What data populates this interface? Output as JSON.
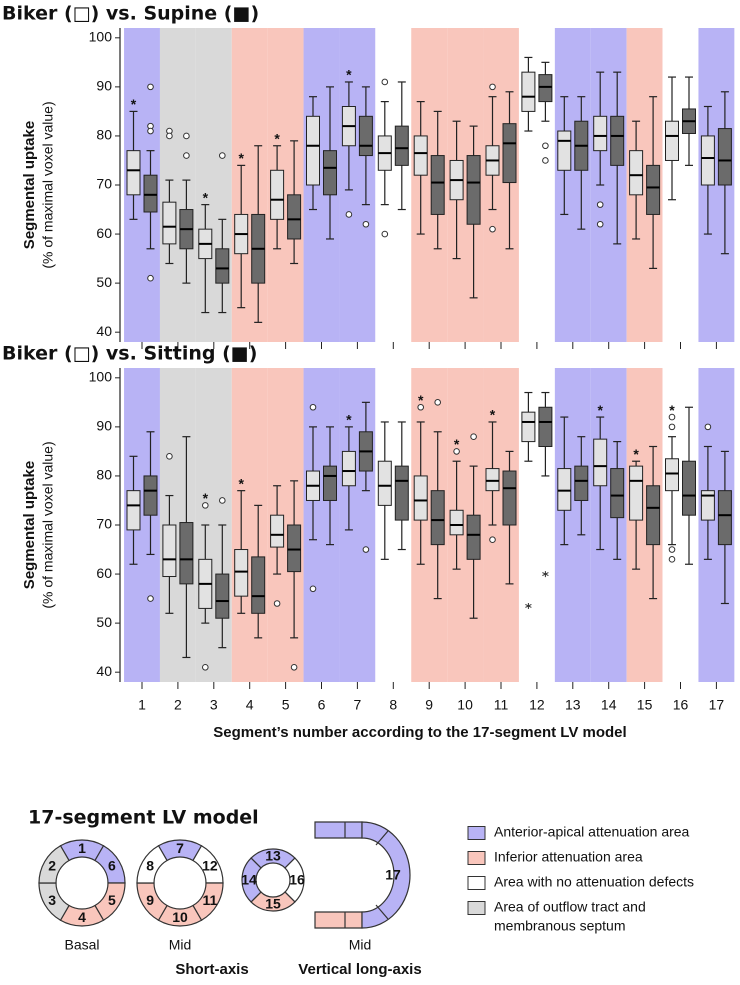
{
  "chart_data": [
    {
      "type": "box",
      "title": "Biker (□) vs. Supine (■)",
      "ylabel": "Segmental uptake",
      "ylabel_sub": "(% of maximal voxel value)",
      "categories": [
        null,
        null,
        null,
        null,
        null,
        null,
        null,
        null,
        null,
        null,
        null,
        null,
        null,
        null,
        null,
        null,
        null
      ],
      "region_colors": [
        "#b8b3f5",
        "#d9d9d9",
        "#d9d9d9",
        "#f9c6bc",
        "#f9c6bc",
        "#b8b3f5",
        "#b8b3f5",
        "#ffffff",
        "#f9c6bc",
        "#f9c6bc",
        "#f9c6bc",
        "#ffffff",
        "#b8b3f5",
        "#b8b3f5",
        "#f9c6bc",
        "#ffffff",
        "#b8b3f5"
      ],
      "ylim": [
        38,
        102
      ],
      "yticks": [
        40,
        50,
        60,
        70,
        80,
        90,
        100
      ],
      "significance_label": "*",
      "significance_color": "#e02020",
      "significant": [
        true,
        false,
        true,
        true,
        true,
        false,
        true,
        false,
        false,
        false,
        false,
        false,
        false,
        false,
        false,
        false,
        false
      ],
      "series": [
        {
          "color": "#e2e2e2",
          "whisker_low": [
            63,
            54,
            44,
            45,
            57,
            65,
            69,
            66,
            60,
            55,
            65,
            81,
            64,
            70,
            59,
            67,
            60
          ],
          "q1": [
            68,
            58,
            55,
            56,
            63,
            70,
            78,
            73,
            72,
            67,
            72,
            85,
            73,
            77,
            68,
            75,
            70
          ],
          "median": [
            73,
            61.5,
            58,
            60,
            67,
            78,
            82,
            76.5,
            76.5,
            71,
            75,
            88,
            79,
            80,
            72,
            80,
            75.5
          ],
          "q3": [
            77,
            66.5,
            61,
            64,
            73,
            84,
            86,
            80,
            80,
            75,
            78,
            93,
            81,
            84,
            77,
            83,
            80
          ],
          "whisker_high": [
            85,
            71,
            66,
            74,
            78,
            88,
            91,
            87,
            87,
            83,
            88,
            96,
            88,
            93,
            83,
            92,
            86
          ],
          "outliers": [
            [],
            [
              81,
              80
            ],
            [],
            [],
            [],
            [],
            [
              64
            ],
            [
              91,
              60
            ],
            [],
            [],
            [
              90,
              61
            ],
            [],
            [],
            [
              66,
              62
            ],
            [],
            [],
            []
          ],
          "extremes": [
            [],
            [],
            [],
            [],
            [],
            [],
            [],
            [],
            [],
            [],
            [],
            [],
            [],
            [],
            [],
            [],
            []
          ]
        },
        {
          "color": "#6b6b6b",
          "whisker_low": [
            57,
            50,
            44,
            42,
            54,
            59,
            66,
            65,
            57,
            47,
            57,
            83,
            61,
            58,
            53,
            74,
            56
          ],
          "q1": [
            64.5,
            57,
            50,
            50,
            59,
            68,
            76,
            74,
            64,
            62,
            70.5,
            87,
            73,
            74,
            64,
            80.5,
            70
          ],
          "median": [
            68,
            61,
            53,
            57,
            63,
            73.5,
            78,
            77.5,
            70.5,
            70.5,
            78.5,
            90,
            78,
            80,
            69.5,
            83,
            75
          ],
          "q3": [
            72,
            65,
            57,
            64,
            68,
            77,
            84,
            82,
            76,
            76,
            82.5,
            92.5,
            83,
            84,
            74,
            85.5,
            81.5
          ],
          "whisker_high": [
            77,
            71,
            63,
            78,
            79,
            90,
            90,
            91,
            85,
            82,
            89,
            95,
            88,
            93,
            88,
            92,
            89
          ],
          "outliers": [
            [
              90,
              82,
              81,
              51
            ],
            [
              80,
              76
            ],
            [
              76
            ],
            [],
            [],
            [],
            [
              62
            ],
            [],
            [],
            [],
            [],
            [
              78,
              75
            ],
            [],
            [],
            [],
            [],
            []
          ],
          "extremes": [
            [],
            [],
            [],
            [],
            [],
            [],
            [],
            [],
            [],
            [],
            [],
            [],
            [],
            [],
            [],
            [],
            []
          ]
        }
      ]
    },
    {
      "type": "box",
      "title": "Biker (□) vs. Sitting (■)",
      "ylabel": "Segmental uptake",
      "ylabel_sub": "(% of maximal voxel value)",
      "xlabel": "Segment’s number according to the 17-segment LV model",
      "categories": [
        "1",
        "2",
        "3",
        "4",
        "5",
        "6",
        "7",
        "8",
        "9",
        "10",
        "11",
        "12",
        "13",
        "14",
        "15",
        "16",
        "17"
      ],
      "region_colors": [
        "#b8b3f5",
        "#d9d9d9",
        "#d9d9d9",
        "#f9c6bc",
        "#f9c6bc",
        "#b8b3f5",
        "#b8b3f5",
        "#ffffff",
        "#f9c6bc",
        "#f9c6bc",
        "#f9c6bc",
        "#ffffff",
        "#b8b3f5",
        "#b8b3f5",
        "#f9c6bc",
        "#ffffff",
        "#b8b3f5"
      ],
      "ylim": [
        38,
        102
      ],
      "yticks": [
        40,
        50,
        60,
        70,
        80,
        90,
        100
      ],
      "significance_label": "*",
      "significance_color": "#e02020",
      "significant": [
        false,
        false,
        true,
        true,
        false,
        false,
        true,
        false,
        true,
        true,
        true,
        false,
        false,
        true,
        true,
        true,
        false
      ],
      "series": [
        {
          "color": "#e2e2e2",
          "whisker_low": [
            62,
            52,
            50,
            52,
            60,
            67,
            69,
            63,
            62,
            61,
            70,
            83,
            66,
            65,
            61,
            66,
            63
          ],
          "q1": [
            69,
            59.5,
            53,
            55.5,
            65.5,
            75,
            78,
            74,
            71,
            68,
            77,
            87,
            73,
            78,
            71,
            77,
            71
          ],
          "median": [
            74,
            63,
            58,
            60.5,
            68,
            78,
            81,
            78,
            75,
            70,
            79,
            91,
            77,
            82,
            79,
            80.5,
            76
          ],
          "q3": [
            77,
            70,
            63,
            65,
            72,
            81,
            85,
            83,
            80,
            73,
            81.5,
            93,
            81.5,
            87.5,
            82,
            83.5,
            77
          ],
          "whisker_high": [
            84,
            76,
            70,
            77,
            78,
            90,
            90,
            91,
            91,
            83,
            91,
            97,
            92,
            92,
            83,
            88,
            86
          ],
          "outliers": [
            [],
            [
              84
            ],
            [
              74,
              41
            ],
            [],
            [
              54
            ],
            [
              94,
              57
            ],
            [],
            [],
            [
              94
            ],
            [
              85
            ],
            [
              67
            ],
            [],
            [],
            [],
            [],
            [
              92,
              90,
              65,
              63
            ],
            [
              90
            ]
          ],
          "extremes": [
            [],
            [],
            [],
            [],
            [],
            [],
            [],
            [],
            [],
            [],
            [],
            [
              53.5
            ],
            [],
            [],
            [],
            [],
            []
          ]
        },
        {
          "color": "#6b6b6b",
          "whisker_low": [
            64,
            43,
            45,
            47,
            47,
            66,
            77,
            65,
            55,
            51,
            58,
            80,
            68,
            63,
            55,
            62,
            54
          ],
          "q1": [
            72,
            58,
            51,
            52,
            60.5,
            75,
            81,
            71,
            66,
            63,
            70,
            86,
            75,
            71.5,
            66,
            72,
            66
          ],
          "median": [
            77,
            63,
            54.5,
            55.5,
            65,
            80,
            85,
            79,
            71,
            68,
            77.5,
            91,
            79,
            76,
            73.5,
            76,
            72
          ],
          "q3": [
            80,
            70.5,
            60,
            63.5,
            70,
            82,
            89,
            82,
            77,
            72,
            81,
            94,
            82,
            81.5,
            78,
            83,
            77
          ],
          "whisker_high": [
            89,
            88,
            70,
            74,
            79,
            90,
            95,
            91,
            89,
            82,
            85,
            97,
            88,
            87,
            86,
            94,
            85
          ],
          "outliers": [
            [
              55
            ],
            [],
            [
              75
            ],
            [],
            [
              41
            ],
            [],
            [
              65
            ],
            [],
            [
              95
            ],
            [
              88
            ],
            [],
            [],
            [],
            [],
            [],
            [],
            []
          ],
          "extremes": [
            [],
            [],
            [],
            [],
            [],
            [],
            [],
            [],
            [],
            [],
            [],
            [
              60
            ],
            [],
            [],
            [],
            [],
            []
          ]
        }
      ]
    }
  ],
  "diagram": {
    "title": "17-segment LV model",
    "rings": [
      {
        "label": "Basal",
        "segments": [
          {
            "label": "1",
            "color": "#b8b3f5"
          },
          {
            "label": "6",
            "color": "#b8b3f5"
          },
          {
            "label": "5",
            "color": "#f9c6bc"
          },
          {
            "label": "4",
            "color": "#f9c6bc"
          },
          {
            "label": "3",
            "color": "#d9d9d9"
          },
          {
            "label": "2",
            "color": "#d9d9d9"
          }
        ]
      },
      {
        "label": "Mid",
        "segments": [
          {
            "label": "7",
            "color": "#b8b3f5"
          },
          {
            "label": "12",
            "color": "#ffffff"
          },
          {
            "label": "11",
            "color": "#f9c6bc"
          },
          {
            "label": "10",
            "color": "#f9c6bc"
          },
          {
            "label": "9",
            "color": "#f9c6bc"
          },
          {
            "label": "8",
            "color": "#ffffff"
          }
        ]
      },
      {
        "label": null,
        "segments": [
          {
            "label": "13",
            "color": "#b8b3f5"
          },
          {
            "label": "16",
            "color": "#ffffff"
          },
          {
            "label": "15",
            "color": "#f9c6bc"
          },
          {
            "label": "14",
            "color": "#b8b3f5"
          }
        ]
      }
    ],
    "short_axis_label": "Short-axis",
    "long_axis": {
      "label": "Mid",
      "group_label": "Vertical long-axis",
      "apex_label": "17",
      "top_color": "#b8b3f5",
      "apex_color": "#b8b3f5",
      "bottom_color": "#f9c6bc"
    },
    "legend": [
      {
        "color": "#b8b3f5",
        "lines": [
          "Anterior-apical attenuation area"
        ]
      },
      {
        "color": "#f9c6bc",
        "lines": [
          "Inferior attenuation area"
        ]
      },
      {
        "color": "#ffffff",
        "lines": [
          "Area with no attenuation defects"
        ]
      },
      {
        "color": "#d9d9d9",
        "lines": [
          "Area of outflow tract and",
          "membranous septum"
        ]
      }
    ]
  }
}
